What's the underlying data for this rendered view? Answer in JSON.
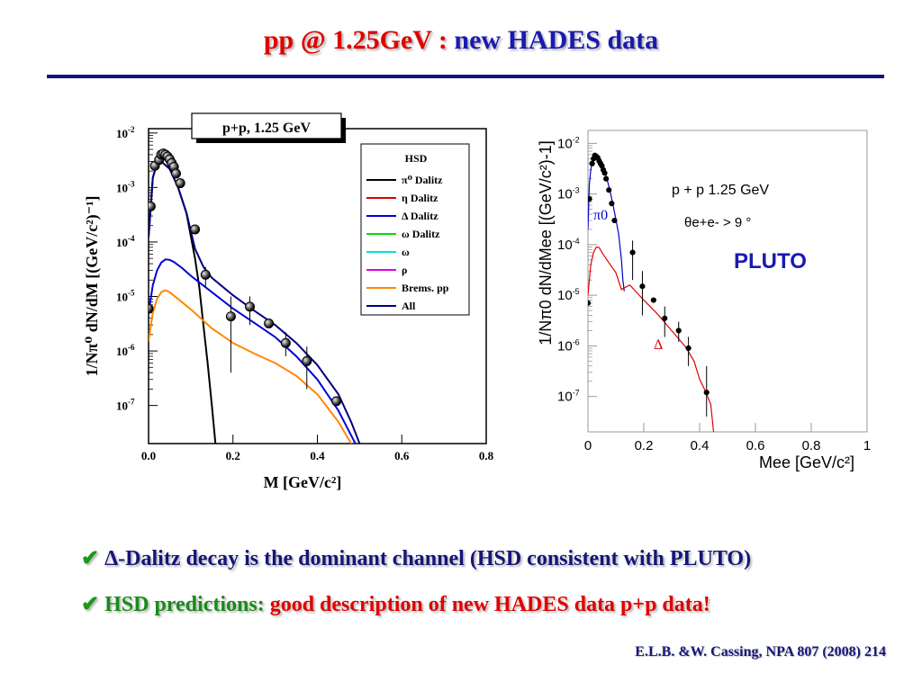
{
  "slide": {
    "title_part1": "pp @ 1.25GeV : ",
    "title_part2": "new HADES data",
    "bullet1": "Δ-Dalitz decay is the dominant channel (HSD consistent with PLUTO)",
    "bullet2_green": "HSD predictions: ",
    "bullet2_red": "good description of new HADES data p+p data!",
    "check_icon": "check-mark-icon",
    "citation": "E.L.B. &W. Cassing, NPA 807 (2008) 214",
    "colors": {
      "title_red": "#e00000",
      "title_blue": "#1a1ab0",
      "rule": "#15157a",
      "check": "#1a9a1a",
      "green": "#1a8a1a"
    }
  },
  "chart_data": [
    {
      "type": "line",
      "title": "p+p, 1.25 GeV",
      "xlabel": "M  [GeV/c²]",
      "ylabel": "1/Nπ⁰ dN/dM [(GeV/c²)⁻¹]",
      "xlim": [
        0,
        0.8
      ],
      "ylim": [
        2e-08,
        0.012
      ],
      "yscale": "log",
      "xticks": [
        "0.0",
        "0.2",
        "0.4",
        "0.6",
        "0.8"
      ],
      "yticks": [
        "10-2",
        "10-3",
        "10-4",
        "10-5",
        "10-6",
        "10-7"
      ],
      "legend_position": "top-right",
      "legend_title": "HSD",
      "legend": [
        {
          "label": "π⁰ Dalitz",
          "color": "#000000"
        },
        {
          "label": "η Dalitz",
          "color": "#e00000"
        },
        {
          "label": "Δ Dalitz",
          "color": "#0000dd"
        },
        {
          "label": "ω Dalitz",
          "color": "#00dd00"
        },
        {
          "label": "ω",
          "color": "#00e0e0"
        },
        {
          "label": "ρ",
          "color": "#e000e0"
        },
        {
          "label": "Brems. pp",
          "color": "#ff8800"
        },
        {
          "label": "All",
          "color": "#000080"
        }
      ],
      "series": [
        {
          "name": "π⁰ Dalitz",
          "color": "#000000",
          "x": [
            0.0,
            0.01,
            0.02,
            0.03,
            0.05,
            0.07,
            0.09,
            0.11,
            0.12,
            0.13,
            0.14,
            0.15,
            0.16
          ],
          "y": [
            0.00012,
            0.0015,
            0.0028,
            0.003,
            0.0022,
            0.001,
            0.00033,
            5e-05,
            1.5e-05,
            3e-06,
            6e-07,
            1e-07,
            1.5e-08
          ]
        },
        {
          "name": "Δ Dalitz",
          "color": "#0000dd",
          "x": [
            0.0,
            0.01,
            0.02,
            0.03,
            0.04,
            0.05,
            0.06,
            0.08,
            0.1,
            0.15,
            0.2,
            0.25,
            0.3,
            0.35,
            0.4,
            0.45,
            0.47,
            0.49,
            0.5
          ],
          "y": [
            5e-06,
            1.6e-05,
            3e-05,
            4.2e-05,
            4.8e-05,
            4.7e-05,
            4.3e-05,
            3.3e-05,
            2.4e-05,
            1.2e-05,
            6e-06,
            3.3e-06,
            1.8e-06,
            8e-07,
            3e-07,
            8e-08,
            4e-08,
            2e-08,
            1e-08
          ]
        },
        {
          "name": "Brems. pp",
          "color": "#ff8800",
          "x": [
            0.0,
            0.01,
            0.02,
            0.03,
            0.04,
            0.05,
            0.07,
            0.1,
            0.15,
            0.2,
            0.25,
            0.3,
            0.35,
            0.4,
            0.45,
            0.48,
            0.5
          ],
          "y": [
            1.5e-06,
            5e-06,
            9e-06,
            1.2e-05,
            1.3e-05,
            1.2e-05,
            9e-06,
            5.8e-06,
            2.6e-06,
            1.4e-06,
            9e-07,
            6e-07,
            3.5e-07,
            1.6e-07,
            5e-08,
            2e-08,
            8e-09
          ]
        },
        {
          "name": "All",
          "color": "#000080",
          "x": [
            0.0,
            0.01,
            0.02,
            0.03,
            0.05,
            0.07,
            0.09,
            0.11,
            0.13,
            0.15,
            0.2,
            0.25,
            0.3,
            0.35,
            0.4,
            0.45,
            0.48,
            0.5,
            0.51
          ],
          "y": [
            0.00012,
            0.0015,
            0.0028,
            0.003,
            0.0022,
            0.001,
            0.00034,
            7.5e-05,
            3.5e-05,
            2.2e-05,
            1.05e-05,
            5.5e-06,
            3e-06,
            1.4e-06,
            5.5e-07,
            1.6e-07,
            5e-08,
            2e-08,
            1e-08
          ]
        }
      ],
      "points": {
        "name": "data",
        "x": [
          0.0,
          0.005,
          0.015,
          0.025,
          0.03,
          0.035,
          0.04,
          0.045,
          0.05,
          0.055,
          0.06,
          0.065,
          0.075,
          0.11,
          0.135,
          0.195,
          0.24,
          0.285,
          0.325,
          0.375,
          0.445
        ],
        "y": [
          6e-06,
          0.00045,
          0.0025,
          0.0032,
          0.004,
          0.0042,
          0.004,
          0.0037,
          0.0033,
          0.0028,
          0.0024,
          0.0018,
          0.0012,
          0.00017,
          2.5e-05,
          4.3e-06,
          6.5e-06,
          3.2e-06,
          1.4e-06,
          6.5e-07,
          1.2e-07
        ],
        "y_low": [
          null,
          null,
          null,
          null,
          null,
          null,
          null,
          null,
          null,
          null,
          null,
          null,
          null,
          null,
          1.5e-05,
          4e-07,
          3e-06,
          null,
          8e-07,
          2e-07,
          null
        ],
        "y_high": [
          null,
          null,
          null,
          null,
          null,
          null,
          null,
          null,
          null,
          null,
          null,
          null,
          null,
          null,
          3.5e-05,
          1e-05,
          1e-05,
          null,
          2.2e-06,
          1.2e-06,
          3.5e-07
        ]
      }
    },
    {
      "type": "line",
      "title": "p + p  1.25 GeV",
      "subtitle": "θe+e- > 9 °",
      "annotations": [
        "PLUTO",
        "π0",
        "Δ"
      ],
      "xlabel": "Mee [GeV/c²]",
      "ylabel": "1/Nπ0 dN/dMee [(GeV/c²)-1]",
      "xlim": [
        0,
        1
      ],
      "ylim": [
        2e-08,
        0.018
      ],
      "yscale": "log",
      "xticks": [
        "0",
        "0.2",
        "0.4",
        "0.6",
        "0.8",
        "1"
      ],
      "yticks": [
        "10-2",
        "10-3",
        "10-4",
        "10-5",
        "10-6",
        "10-7"
      ],
      "series": [
        {
          "name": "π0",
          "color": "#0000cc",
          "x": [
            0.0,
            0.005,
            0.01,
            0.02,
            0.03,
            0.04,
            0.05,
            0.06,
            0.07,
            0.08,
            0.09,
            0.1,
            0.11,
            0.12,
            0.125,
            0.13
          ],
          "y": [
            0.0002,
            0.0015,
            0.003,
            0.0055,
            0.006,
            0.0052,
            0.004,
            0.0029,
            0.0018,
            0.0011,
            0.0006,
            0.00032,
            0.00016,
            5e-05,
            2e-05,
            1.2e-05
          ]
        },
        {
          "name": "Δ",
          "color": "#e00000",
          "x": [
            0.0,
            0.01,
            0.02,
            0.03,
            0.04,
            0.05,
            0.07,
            0.1,
            0.12,
            0.15,
            0.2,
            0.25,
            0.3,
            0.35,
            0.38,
            0.4,
            0.42,
            0.44,
            0.45
          ],
          "y": [
            1e-05,
            4e-05,
            7e-05,
            9e-05,
            8.8e-05,
            7e-05,
            4.8e-05,
            2.8e-05,
            1.3e-05,
            1.6e-05,
            8e-06,
            4.2e-06,
            2e-06,
            9.5e-07,
            5e-07,
            2.2e-07,
            1.3e-07,
            7e-08,
            2e-08
          ]
        }
      ],
      "points": {
        "name": "data",
        "x": [
          0.0,
          0.005,
          0.015,
          0.02,
          0.025,
          0.03,
          0.035,
          0.04,
          0.045,
          0.05,
          0.055,
          0.06,
          0.065,
          0.075,
          0.085,
          0.095,
          0.16,
          0.195,
          0.235,
          0.275,
          0.325,
          0.36,
          0.425
        ],
        "y": [
          7e-06,
          0.0008,
          0.004,
          0.005,
          0.0058,
          0.0055,
          0.0052,
          0.0045,
          0.004,
          0.0036,
          0.003,
          0.0026,
          0.002,
          0.0012,
          0.00065,
          0.0003,
          7e-05,
          1.5e-05,
          8e-06,
          3.5e-06,
          2e-06,
          9e-07,
          1.2e-07
        ],
        "y_low": [
          null,
          null,
          null,
          null,
          null,
          null,
          null,
          null,
          null,
          null,
          null,
          null,
          null,
          null,
          null,
          null,
          2e-05,
          4e-06,
          null,
          1.5e-06,
          1.2e-06,
          4e-07,
          4e-08
        ],
        "y_high": [
          null,
          null,
          null,
          null,
          null,
          null,
          null,
          null,
          null,
          null,
          null,
          null,
          null,
          null,
          null,
          null,
          0.00012,
          3e-05,
          null,
          6e-06,
          3e-06,
          1.5e-06,
          4e-07
        ]
      }
    }
  ]
}
